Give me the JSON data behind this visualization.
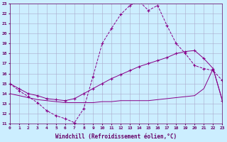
{
  "xlabel": "Windchill (Refroidissement éolien,°C)",
  "bg_color": "#cceeff",
  "grid_color": "#aaaacc",
  "line_color": "#880088",
  "x_min": 0,
  "x_max": 23,
  "y_min": 11,
  "y_max": 23,
  "line1_x": [
    0,
    1,
    2,
    3,
    4,
    5,
    6,
    7,
    8,
    9,
    10,
    11,
    12,
    13,
    14,
    15,
    16,
    17,
    18,
    19,
    20,
    21,
    22,
    23
  ],
  "line1_y": [
    15.0,
    14.3,
    13.7,
    13.1,
    12.3,
    11.8,
    11.5,
    11.1,
    12.5,
    15.7,
    19.0,
    20.5,
    21.9,
    22.8,
    23.2,
    22.3,
    22.8,
    20.8,
    19.0,
    18.0,
    16.8,
    16.5,
    16.3,
    15.3
  ],
  "line2_x": [
    0,
    1,
    2,
    3,
    4,
    5,
    6,
    7,
    8,
    9,
    10,
    11,
    12,
    13,
    14,
    15,
    16,
    17,
    18,
    19,
    20,
    21,
    22,
    23
  ],
  "line2_y": [
    15.0,
    14.5,
    14.0,
    13.8,
    13.5,
    13.4,
    13.3,
    13.5,
    14.0,
    14.5,
    15.0,
    15.5,
    15.9,
    16.3,
    16.7,
    17.0,
    17.3,
    17.6,
    18.0,
    18.2,
    18.3,
    17.5,
    16.5,
    13.3
  ],
  "line3_x": [
    0,
    1,
    2,
    3,
    4,
    5,
    6,
    7,
    8,
    9,
    10,
    11,
    12,
    13,
    14,
    15,
    16,
    17,
    18,
    19,
    20,
    21,
    22,
    23
  ],
  "line3_y": [
    14.0,
    13.8,
    13.6,
    13.4,
    13.3,
    13.2,
    13.1,
    13.1,
    13.1,
    13.1,
    13.2,
    13.2,
    13.3,
    13.3,
    13.3,
    13.3,
    13.4,
    13.5,
    13.6,
    13.7,
    13.8,
    14.5,
    16.5,
    13.3
  ],
  "font_color": "#660066",
  "tick_fontsize": 4.5,
  "label_fontsize": 5.5
}
